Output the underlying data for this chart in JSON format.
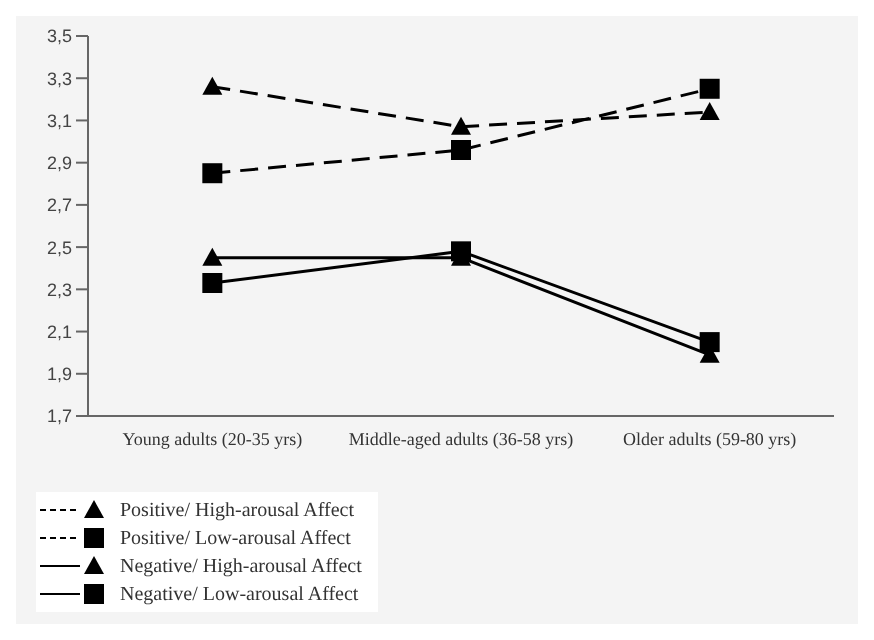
{
  "chart_data": {
    "type": "line",
    "categories": [
      "Young adults (20-35 yrs)",
      "Middle-aged adults (36-58 yrs)",
      "Older adults (59-80 yrs)"
    ],
    "series": [
      {
        "name": "Positive/ High-arousal Affect",
        "color": "#000000",
        "values": [
          3.26,
          3.07,
          3.14
        ],
        "line_style": "dashed",
        "marker": "triangle"
      },
      {
        "name": "Positive/ Low-arousal Affect",
        "color": "#000000",
        "values": [
          2.85,
          2.96,
          3.25
        ],
        "line_style": "dashed",
        "marker": "square"
      },
      {
        "name": "Negative/ High-arousal Affect",
        "color": "#000000",
        "values": [
          2.45,
          2.45,
          1.99
        ],
        "line_style": "solid",
        "marker": "triangle"
      },
      {
        "name": "Negative/ Low-arousal Affect",
        "color": "#000000",
        "values": [
          2.33,
          2.48,
          2.05
        ],
        "line_style": "solid",
        "marker": "square"
      }
    ],
    "ylim": [
      1.7,
      3.5
    ],
    "yticks": [
      {
        "value": 1.7,
        "label": "1,7"
      },
      {
        "value": 1.9,
        "label": "1,9"
      },
      {
        "value": 2.1,
        "label": "2,1"
      },
      {
        "value": 2.3,
        "label": "2,3"
      },
      {
        "value": 2.5,
        "label": "2,5"
      },
      {
        "value": 2.7,
        "label": "2,7"
      },
      {
        "value": 2.9,
        "label": "2,9"
      },
      {
        "value": 3.1,
        "label": "3,1"
      },
      {
        "value": 3.3,
        "label": "3,3"
      },
      {
        "value": 3.5,
        "label": "3,5"
      }
    ],
    "grid": false,
    "legend": "bottom left"
  }
}
